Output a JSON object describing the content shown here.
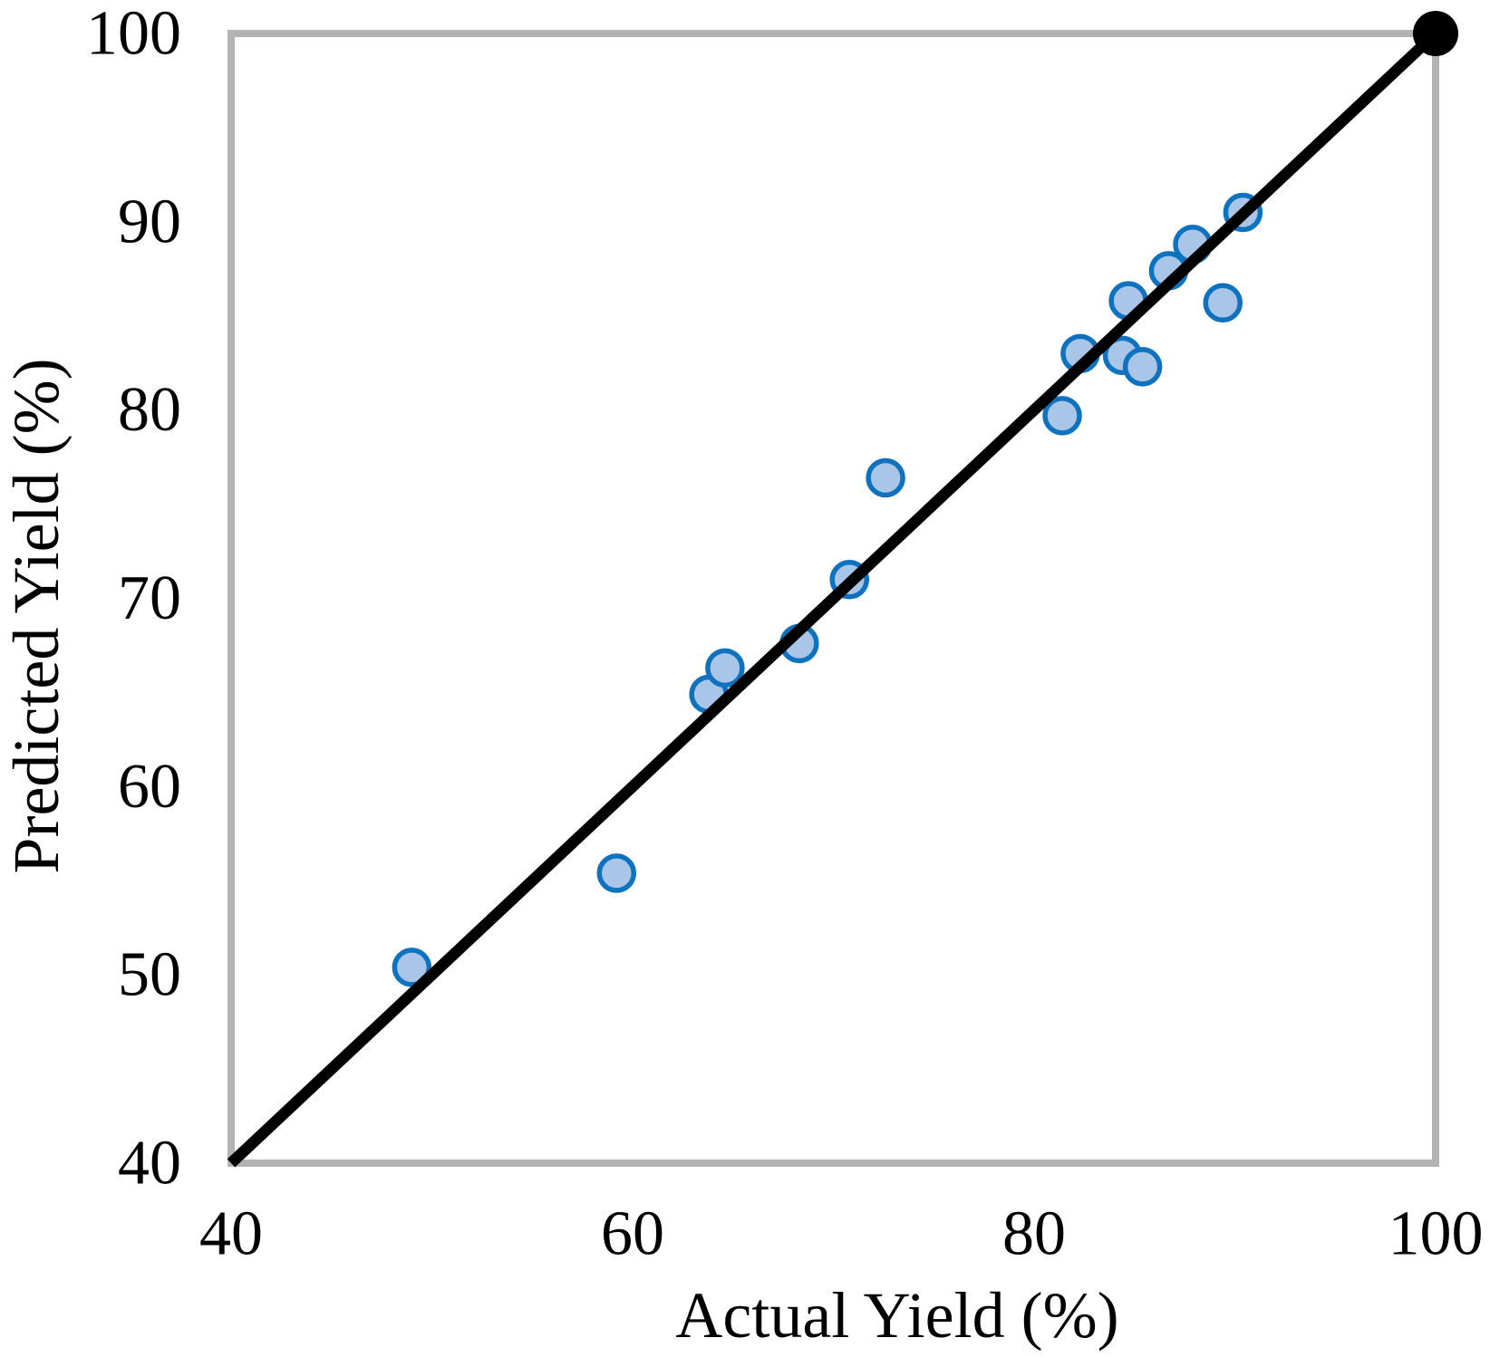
{
  "chart_data": {
    "type": "scatter",
    "title": "",
    "xlabel": "Actual Yield (%)",
    "ylabel": "Predicted Yield (%)",
    "xlim": [
      40,
      100
    ],
    "ylim": [
      40,
      100
    ],
    "x_tick_labels": [
      "40",
      "60",
      "80",
      "100"
    ],
    "y_tick_labels": [
      "100",
      "90",
      "80",
      "70",
      "60",
      "50",
      "40"
    ],
    "grid": false,
    "legend": false,
    "series": [
      {
        "name": "predicted-vs-actual-yield",
        "marker": "circle",
        "fill": "#A9C6E8",
        "stroke": "#0E72BE",
        "points": [
          [
            49.0,
            50.4
          ],
          [
            59.2,
            55.4
          ],
          [
            63.8,
            64.9
          ],
          [
            64.6,
            66.3
          ],
          [
            68.3,
            67.6
          ],
          [
            70.8,
            71.0
          ],
          [
            72.6,
            76.4
          ],
          [
            81.4,
            79.7
          ],
          [
            82.3,
            83.0
          ],
          [
            84.4,
            82.9
          ],
          [
            84.7,
            85.8
          ],
          [
            85.4,
            82.3
          ],
          [
            86.7,
            87.4
          ],
          [
            87.9,
            88.8
          ],
          [
            89.4,
            85.7
          ],
          [
            90.4,
            90.5
          ]
        ]
      }
    ],
    "parity_line": {
      "from": [
        40,
        40
      ],
      "to": [
        100,
        100
      ],
      "color": "#000000",
      "endpoint_marker_at": [
        100,
        100
      ],
      "endpoint_marker_color": "#000000"
    },
    "colors": {
      "plot_border": "#B3B3B3",
      "text": "#000000",
      "background": "#FFFFFF"
    }
  }
}
